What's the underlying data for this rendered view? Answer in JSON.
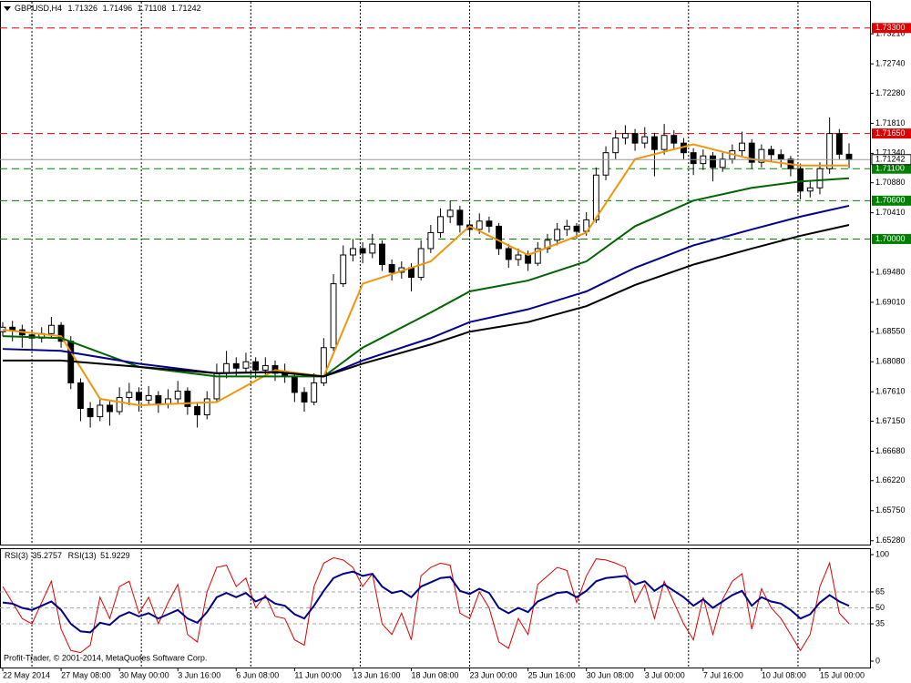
{
  "chart_data": {
    "type": "candlestick",
    "title": "GBPUSD,H4",
    "ylim": [
      1.6522,
      1.7371
    ],
    "yticks": [
      {
        "value": 1.7321,
        "label": "1.73210"
      },
      {
        "value": 1.7274,
        "label": "1.72740"
      },
      {
        "value": 1.7228,
        "label": "1.72280"
      },
      {
        "value": 1.7181,
        "label": "1.71810"
      },
      {
        "value": 1.7134,
        "label": "1.71340"
      },
      {
        "value": 1.7088,
        "label": "1.70880"
      },
      {
        "value": 1.7041,
        "label": "1.70410"
      },
      {
        "value": 1.6948,
        "label": "1.69480"
      },
      {
        "value": 1.6901,
        "label": "1.69010"
      },
      {
        "value": 1.6855,
        "label": "1.68550"
      },
      {
        "value": 1.6808,
        "label": "1.68080"
      },
      {
        "value": 1.6761,
        "label": "1.67610"
      },
      {
        "value": 1.6715,
        "label": "1.67150"
      },
      {
        "value": 1.6668,
        "label": "1.66680"
      },
      {
        "value": 1.6622,
        "label": "1.66220"
      },
      {
        "value": 1.6575,
        "label": "1.65750"
      },
      {
        "value": 1.6528,
        "label": "1.65280"
      }
    ],
    "levels": [
      {
        "value": 1.733,
        "label": "1.73300",
        "color": "#e00000"
      },
      {
        "value": 1.7165,
        "label": "1.71650",
        "color": "#e00000"
      },
      {
        "value": 1.711,
        "label": "1.71100",
        "color": "#008000"
      },
      {
        "value": 1.706,
        "label": "1.70600",
        "color": "#008000"
      },
      {
        "value": 1.7,
        "label": "1.70000",
        "color": "#008000"
      }
    ],
    "up_color": "#ffffff",
    "down_color": "#000000",
    "ohlc": [
      [
        1.6855,
        1.687,
        1.6848,
        1.6862
      ],
      [
        1.6862,
        1.6872,
        1.684,
        1.6858
      ],
      [
        1.6858,
        1.6866,
        1.683,
        1.685
      ],
      [
        1.685,
        1.6858,
        1.6825,
        1.6845
      ],
      [
        1.6845,
        1.6862,
        1.6838,
        1.6852
      ],
      [
        1.6852,
        1.6878,
        1.6845,
        1.6865
      ],
      [
        1.6865,
        1.687,
        1.683,
        1.684
      ],
      [
        1.684,
        1.6848,
        1.6765,
        1.6775
      ],
      [
        1.6775,
        1.6782,
        1.6715,
        1.6735
      ],
      [
        1.6735,
        1.6745,
        1.6705,
        1.6722
      ],
      [
        1.6722,
        1.6752,
        1.6715,
        1.674
      ],
      [
        1.674,
        1.6748,
        1.6708,
        1.673
      ],
      [
        1.673,
        1.6768,
        1.6725,
        1.6752
      ],
      [
        1.6752,
        1.6775,
        1.674,
        1.676
      ],
      [
        1.676,
        1.6768,
        1.673,
        1.6748
      ],
      [
        1.6748,
        1.677,
        1.674,
        1.6755
      ],
      [
        1.6755,
        1.6762,
        1.6728,
        1.6742
      ],
      [
        1.6742,
        1.6765,
        1.6735,
        1.675
      ],
      [
        1.675,
        1.6778,
        1.6742,
        1.6762
      ],
      [
        1.6762,
        1.6768,
        1.6725,
        1.6738
      ],
      [
        1.6738,
        1.6745,
        1.6705,
        1.6725
      ],
      [
        1.6725,
        1.6762,
        1.6718,
        1.675
      ],
      [
        1.675,
        1.6805,
        1.6745,
        1.679
      ],
      [
        1.679,
        1.6825,
        1.6782,
        1.6805
      ],
      [
        1.6805,
        1.6815,
        1.6785,
        1.6798
      ],
      [
        1.6798,
        1.6822,
        1.679,
        1.6808
      ],
      [
        1.6808,
        1.6815,
        1.6782,
        1.6795
      ],
      [
        1.6795,
        1.6815,
        1.6788,
        1.6802
      ],
      [
        1.6802,
        1.681,
        1.6778,
        1.679
      ],
      [
        1.679,
        1.6805,
        1.6775,
        1.6785
      ],
      [
        1.6785,
        1.6792,
        1.6745,
        1.676
      ],
      [
        1.676,
        1.6768,
        1.673,
        1.6745
      ],
      [
        1.6745,
        1.679,
        1.674,
        1.6775
      ],
      [
        1.6775,
        1.6845,
        1.677,
        1.683
      ],
      [
        1.683,
        1.6945,
        1.6825,
        1.693
      ],
      [
        1.693,
        1.699,
        1.6925,
        1.6975
      ],
      [
        1.6975,
        1.7,
        1.6965,
        1.6985
      ],
      [
        1.6985,
        1.6995,
        1.6962,
        1.6978
      ],
      [
        1.6978,
        1.7008,
        1.697,
        1.6992
      ],
      [
        1.6992,
        1.6998,
        1.695,
        1.696
      ],
      [
        1.696,
        1.6968,
        1.6935,
        1.6948
      ],
      [
        1.6948,
        1.6965,
        1.6938,
        1.6955
      ],
      [
        1.6955,
        1.6962,
        1.6918,
        1.694
      ],
      [
        1.694,
        1.6998,
        1.6935,
        1.6985
      ],
      [
        1.6985,
        1.7022,
        1.6978,
        1.701
      ],
      [
        1.701,
        1.7048,
        1.7002,
        1.7035
      ],
      [
        1.7035,
        1.706,
        1.7025,
        1.7045
      ],
      [
        1.7045,
        1.7052,
        1.701,
        1.7022
      ],
      [
        1.7022,
        1.703,
        1.7005,
        1.7015
      ],
      [
        1.7015,
        1.704,
        1.7008,
        1.7028
      ],
      [
        1.7028,
        1.7035,
        1.701,
        1.702
      ],
      [
        1.702,
        1.7025,
        1.6975,
        1.6985
      ],
      [
        1.6985,
        1.6992,
        1.6955,
        1.6968
      ],
      [
        1.6968,
        1.6985,
        1.6958,
        1.6975
      ],
      [
        1.6975,
        1.6982,
        1.695,
        1.6962
      ],
      [
        1.6962,
        1.6995,
        1.6958,
        1.6985
      ],
      [
        1.6985,
        1.7008,
        1.6978,
        1.6998
      ],
      [
        1.6998,
        1.7025,
        1.699,
        1.7015
      ],
      [
        1.7015,
        1.703,
        1.7005,
        1.702
      ],
      [
        1.702,
        1.7025,
        1.7,
        1.7012
      ],
      [
        1.7012,
        1.7042,
        1.7005,
        1.703
      ],
      [
        1.703,
        1.7112,
        1.7025,
        1.71
      ],
      [
        1.71,
        1.7145,
        1.7092,
        1.7135
      ],
      [
        1.7135,
        1.717,
        1.7125,
        1.7158
      ],
      [
        1.7158,
        1.7178,
        1.7148,
        1.7165
      ],
      [
        1.7165,
        1.7172,
        1.7138,
        1.715
      ],
      [
        1.715,
        1.7175,
        1.7142,
        1.716
      ],
      [
        1.716,
        1.7166,
        1.7098,
        1.714
      ],
      [
        1.714,
        1.718,
        1.7132,
        1.7162
      ],
      [
        1.7162,
        1.717,
        1.714,
        1.715
      ],
      [
        1.715,
        1.7158,
        1.7125,
        1.7135
      ],
      [
        1.7135,
        1.7142,
        1.71,
        1.7118
      ],
      [
        1.7118,
        1.714,
        1.7108,
        1.713
      ],
      [
        1.713,
        1.7136,
        1.709,
        1.7112
      ],
      [
        1.7112,
        1.7135,
        1.7105,
        1.7125
      ],
      [
        1.7125,
        1.7148,
        1.7118,
        1.7138
      ],
      [
        1.7138,
        1.7168,
        1.713,
        1.715
      ],
      [
        1.715,
        1.7156,
        1.711,
        1.712
      ],
      [
        1.712,
        1.7148,
        1.7112,
        1.714
      ],
      [
        1.714,
        1.7146,
        1.7122,
        1.7132
      ],
      [
        1.7132,
        1.714,
        1.7112,
        1.7125
      ],
      [
        1.7125,
        1.713,
        1.7098,
        1.711
      ],
      [
        1.711,
        1.7118,
        1.7062,
        1.7075
      ],
      [
        1.7075,
        1.7092,
        1.7065,
        1.708
      ],
      [
        1.708,
        1.712,
        1.707,
        1.711
      ],
      [
        1.711,
        1.719,
        1.7102,
        1.7165
      ],
      [
        1.7165,
        1.7172,
        1.7125,
        1.71326
      ],
      [
        1.71326,
        1.71496,
        1.71108,
        1.71242
      ]
    ],
    "ma": [
      {
        "color": "#f0960a",
        "x": [
          0,
          6,
          10,
          14,
          22,
          28,
          33,
          37,
          44,
          48,
          54,
          60,
          65,
          71,
          77,
          82,
          87
        ],
        "values": [
          1.6858,
          1.6848,
          1.675,
          1.674,
          1.6745,
          1.6795,
          1.6785,
          1.693,
          1.6965,
          1.702,
          1.6975,
          1.701,
          1.7125,
          1.7148,
          1.7125,
          1.7115,
          1.7115
        ]
      },
      {
        "color": "#006400",
        "x": [
          0,
          6,
          14,
          22,
          28,
          33,
          37,
          44,
          48,
          54,
          60,
          65,
          71,
          77,
          82,
          87
        ],
        "values": [
          1.6848,
          1.6845,
          1.68,
          1.6785,
          1.6785,
          1.6785,
          1.683,
          1.6885,
          1.6918,
          1.6935,
          1.6965,
          1.702,
          1.706,
          1.708,
          1.709,
          1.7095
        ]
      },
      {
        "color": "#00008b",
        "x": [
          0,
          6,
          14,
          22,
          28,
          33,
          37,
          44,
          48,
          54,
          60,
          65,
          71,
          77,
          82,
          87
        ],
        "values": [
          1.6828,
          1.6825,
          1.6805,
          1.679,
          1.6792,
          1.6785,
          1.681,
          1.6845,
          1.687,
          1.689,
          1.6918,
          1.6955,
          1.699,
          1.7015,
          1.7035,
          1.7052
        ]
      },
      {
        "color": "#000000",
        "x": [
          0,
          6,
          14,
          22,
          28,
          33,
          37,
          44,
          48,
          54,
          60,
          65,
          71,
          77,
          82,
          87
        ],
        "values": [
          1.681,
          1.681,
          1.68,
          1.679,
          1.6792,
          1.6785,
          1.6805,
          1.6835,
          1.6855,
          1.687,
          1.6895,
          1.6928,
          1.696,
          1.6985,
          1.7005,
          1.7022
        ]
      }
    ],
    "time_labels": [
      {
        "value": 0,
        "label": "22 May 2014"
      },
      {
        "value": 6,
        "label": "27 May 08:00"
      },
      {
        "value": 12,
        "label": "30 May 00:00"
      },
      {
        "value": 18,
        "label": "3 Jun 16:00"
      },
      {
        "value": 24,
        "label": "6 Jun 08:00"
      },
      {
        "value": 30,
        "label": "11 Jun 00:00"
      },
      {
        "value": 36,
        "label": "13 Jun 16:00"
      },
      {
        "value": 42,
        "label": "18 Jun 08:00"
      },
      {
        "value": 48,
        "label": "23 Jun 00:00"
      },
      {
        "value": 54,
        "label": "25 Jun 16:00"
      },
      {
        "value": 60,
        "label": "30 Jun 08:00"
      },
      {
        "value": 66,
        "label": "3 Jul 00:00"
      },
      {
        "value": 72,
        "label": "7 Jul 16:00"
      },
      {
        "value": 78,
        "label": "10 Jul 08:00"
      },
      {
        "value": 84,
        "label": "15 Jul 00:00"
      }
    ],
    "xgrid": [
      3,
      14.25,
      25.5,
      36.75,
      48,
      59.25,
      70.5,
      81.75
    ],
    "rsi": {
      "ylim": [
        -6,
        106
      ],
      "yticks": [
        100,
        65,
        50,
        35,
        0
      ],
      "levels": [
        65,
        50,
        35
      ],
      "series": [
        {
          "name": "RSI(3)",
          "color": "#dd0000",
          "values": [
            70,
            55,
            40,
            35,
            55,
            75,
            30,
            10,
            8,
            15,
            60,
            40,
            70,
            75,
            45,
            60,
            35,
            55,
            72,
            25,
            18,
            65,
            88,
            90,
            70,
            78,
            50,
            62,
            42,
            40,
            20,
            15,
            70,
            92,
            97,
            95,
            88,
            70,
            82,
            35,
            25,
            45,
            20,
            80,
            88,
            92,
            90,
            45,
            40,
            65,
            50,
            18,
            12,
            40,
            25,
            72,
            80,
            88,
            85,
            55,
            80,
            96,
            95,
            92,
            88,
            55,
            72,
            40,
            75,
            55,
            35,
            20,
            60,
            25,
            58,
            75,
            82,
            30,
            68,
            50,
            40,
            25,
            10,
            25,
            70,
            92,
            45,
            35.2757
          ]
        },
        {
          "name": "RSI(13)",
          "color": "#00008b",
          "values": [
            55,
            54,
            50,
            48,
            52,
            56,
            48,
            35,
            28,
            27,
            36,
            34,
            42,
            46,
            42,
            45,
            40,
            44,
            48,
            40,
            36,
            46,
            60,
            64,
            60,
            64,
            56,
            60,
            54,
            52,
            44,
            40,
            52,
            66,
            78,
            82,
            84,
            80,
            82,
            70,
            64,
            66,
            60,
            70,
            74,
            78,
            79,
            66,
            63,
            68,
            64,
            50,
            45,
            50,
            46,
            56,
            60,
            64,
            65,
            60,
            66,
            75,
            78,
            79,
            80,
            72,
            75,
            66,
            72,
            66,
            60,
            52,
            58,
            50,
            56,
            62,
            66,
            52,
            60,
            56,
            54,
            48,
            40,
            44,
            55,
            62,
            56,
            51.9229
          ]
        }
      ]
    },
    "copyright": "Profit-Trader, © 2001-2014, MetaQuotes Software Corp."
  }
}
